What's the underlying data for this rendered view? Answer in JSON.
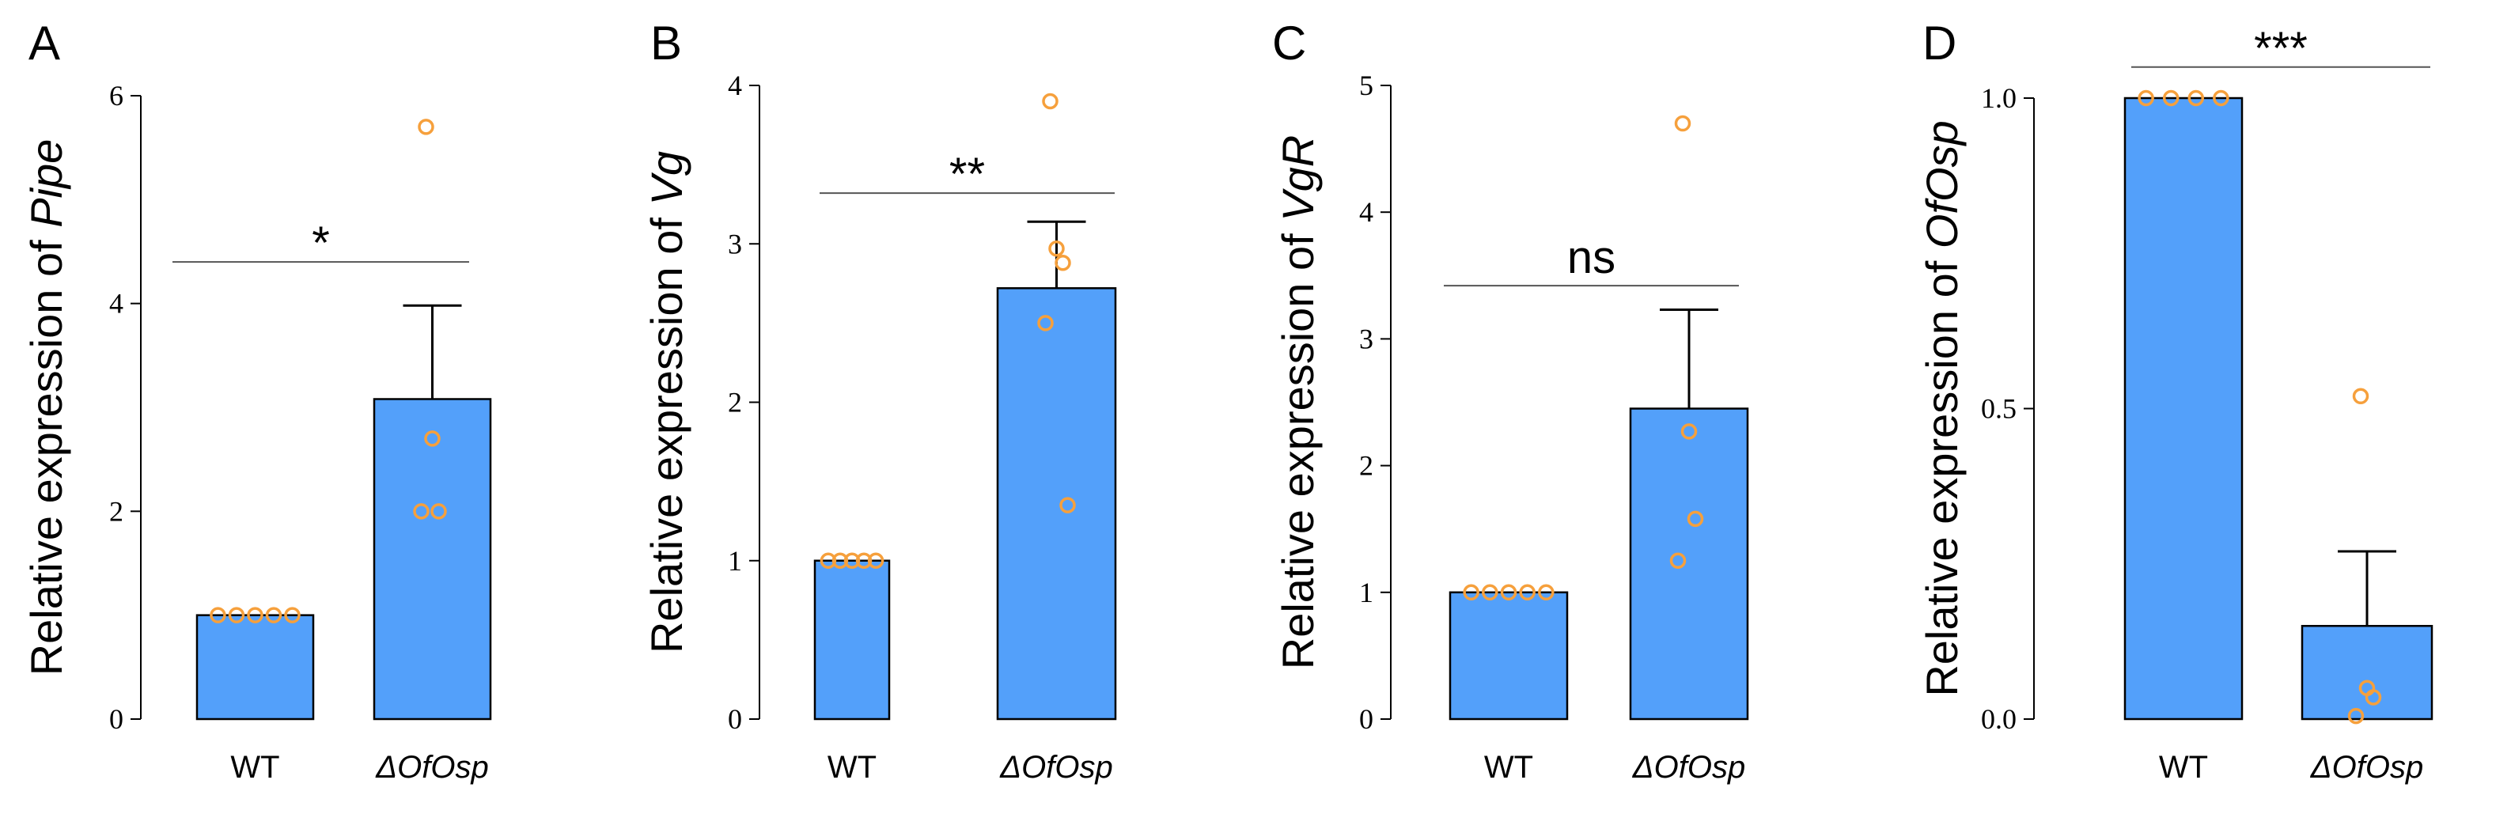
{
  "colors": {
    "bar": "#53a0fa",
    "bar_stroke": "#000000",
    "point": "#f6a03c",
    "sig_line": "#555555"
  },
  "chart_data": [
    {
      "type": "bar",
      "panel": "A",
      "ylabel_prefix": "Relative expression of ",
      "gene": "Pipe",
      "categories": [
        "WT",
        "ΔOfOsp"
      ],
      "values": [
        1.0,
        3.08
      ],
      "error": [
        0,
        0.9
      ],
      "points": [
        [
          1.0,
          1.0,
          1.0,
          1.0,
          1.0
        ],
        [
          5.7,
          2.7,
          2.0,
          2.0
        ]
      ],
      "ylim": [
        0,
        6
      ],
      "yticks": [
        "0",
        "2",
        "4",
        "6"
      ],
      "ytick_values": [
        0,
        2,
        4,
        6
      ],
      "significance": {
        "label": "*",
        "y": 4.4
      }
    },
    {
      "type": "bar",
      "panel": "B",
      "ylabel_prefix": "Relative expression of ",
      "gene": "Vg",
      "categories": [
        "WT",
        "ΔOfOsp"
      ],
      "values": [
        1.0,
        2.72
      ],
      "error": [
        0,
        0.42
      ],
      "points": [
        [
          1.0,
          1.0,
          1.0,
          1.0,
          1.0
        ],
        [
          3.9,
          2.97,
          2.88,
          2.5,
          1.35
        ]
      ],
      "ylim": [
        0,
        4
      ],
      "yticks": [
        "0",
        "1",
        "2",
        "3",
        "4"
      ],
      "ytick_values": [
        0,
        1,
        2,
        3,
        4
      ],
      "significance": {
        "label": "**",
        "y": 3.32
      }
    },
    {
      "type": "bar",
      "panel": "C",
      "ylabel_prefix": "Relative expression of ",
      "gene": "VgR",
      "categories": [
        "WT",
        "ΔOfOsp"
      ],
      "values": [
        1.0,
        2.45
      ],
      "error": [
        0,
        0.78
      ],
      "points": [
        [
          1.0,
          1.0,
          1.0,
          1.0,
          1.0
        ],
        [
          4.7,
          2.27,
          1.58,
          1.25
        ]
      ],
      "ylim": [
        0,
        5
      ],
      "yticks": [
        "0",
        "1",
        "2",
        "3",
        "4",
        "5"
      ],
      "ytick_values": [
        0,
        1,
        2,
        3,
        4,
        5
      ],
      "significance": {
        "label": "ns",
        "y": 3.42
      }
    },
    {
      "type": "bar",
      "panel": "D",
      "ylabel_prefix": "Relative expression of ",
      "gene": "OfOsp",
      "categories": [
        "WT",
        "ΔOfOsp"
      ],
      "values": [
        1.0,
        0.15
      ],
      "error": [
        0,
        0.12
      ],
      "points": [
        [
          1.0,
          1.0,
          1.0,
          1.0
        ],
        [
          0.52,
          0.05,
          0.035,
          0.005
        ]
      ],
      "ylim": [
        0,
        1.05
      ],
      "yticks": [
        "0.0",
        "0.5",
        "1.0"
      ],
      "ytick_values": [
        0,
        0.5,
        1.0
      ],
      "significance": {
        "label": "***",
        "y": 1.05
      }
    }
  ]
}
